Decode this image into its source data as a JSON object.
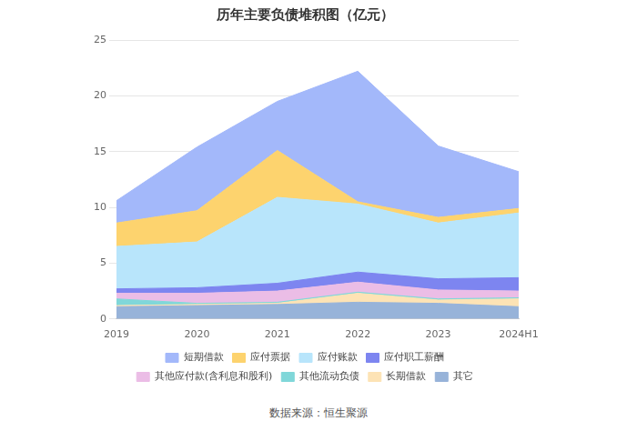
{
  "chart_data": {
    "type": "area",
    "title": "历年主要负债堆积图（亿元）",
    "source": "数据来源：恒生聚源",
    "categories": [
      "2019",
      "2020",
      "2021",
      "2022",
      "2023",
      "2024H1"
    ],
    "stacked": true,
    "grid": true,
    "legend": "bottom",
    "ylim": [
      0,
      25
    ],
    "yticks": [
      0,
      5,
      10,
      15,
      20,
      25
    ],
    "series": [
      {
        "name": "短期借款",
        "color": "#a3b8fa",
        "values": [
          2.0,
          5.7,
          4.4,
          11.7,
          6.4,
          3.3
        ]
      },
      {
        "name": "应付票据",
        "color": "#fdd36e",
        "values": [
          2.1,
          2.8,
          4.2,
          0.2,
          0.5,
          0.4
        ]
      },
      {
        "name": "应付账款",
        "color": "#b8e5fb",
        "values": [
          3.8,
          4.1,
          7.7,
          6.1,
          5.0,
          5.8
        ]
      },
      {
        "name": "应付职工薪酬",
        "color": "#7d85f0",
        "values": [
          0.4,
          0.5,
          0.7,
          0.9,
          1.0,
          1.2
        ]
      },
      {
        "name": "其他应付款(含利息和股利)",
        "color": "#ebbde6",
        "values": [
          0.5,
          0.9,
          1.0,
          0.9,
          0.8,
          0.6
        ]
      },
      {
        "name": "其他流动负债",
        "color": "#80d7d9",
        "values": [
          0.6,
          0.1,
          0.1,
          0.1,
          0.1,
          0.1
        ]
      },
      {
        "name": "长期借款",
        "color": "#fde3b5",
        "values": [
          0.1,
          0.1,
          0.1,
          0.8,
          0.3,
          0.7
        ]
      },
      {
        "name": "其它",
        "color": "#97b3d9",
        "values": [
          1.1,
          1.2,
          1.3,
          1.5,
          1.4,
          1.1
        ]
      }
    ]
  }
}
